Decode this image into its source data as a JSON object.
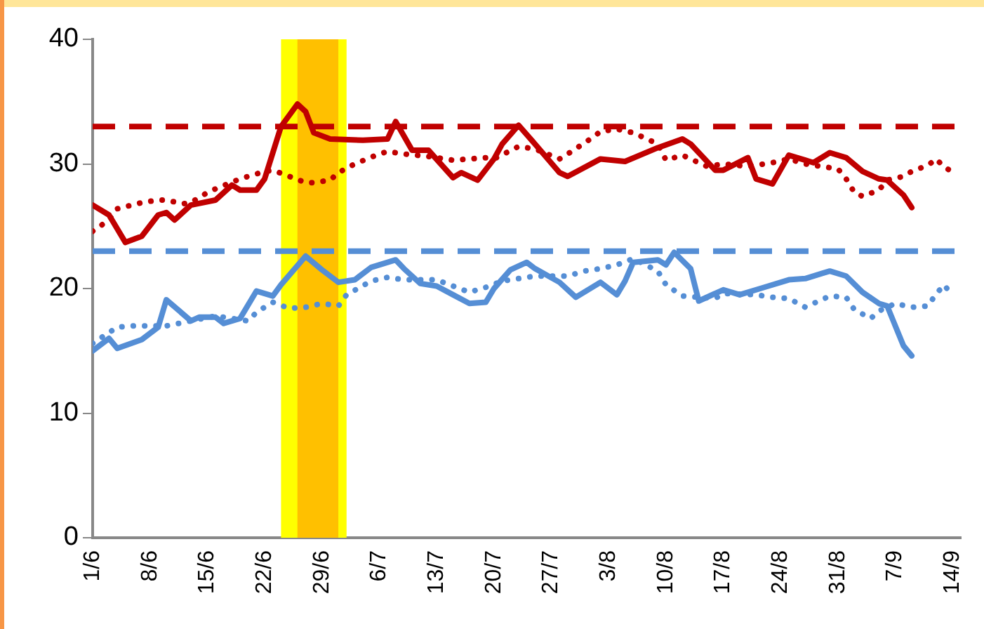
{
  "chart_data": {
    "type": "line",
    "xlim": [
      "--06-01",
      "--09-15"
    ],
    "xticks": [
      {
        "value": "--06-01",
        "label": "1/6"
      },
      {
        "value": "--06-08",
        "label": "8/6"
      },
      {
        "value": "--06-15",
        "label": "15/6"
      },
      {
        "value": "--06-22",
        "label": "22/6"
      },
      {
        "value": "--06-29",
        "label": "29/6"
      },
      {
        "value": "--07-06",
        "label": "6/7"
      },
      {
        "value": "--07-13",
        "label": "13/7"
      },
      {
        "value": "--07-20",
        "label": "20/7"
      },
      {
        "value": "--07-27",
        "label": "27/7"
      },
      {
        "value": "--08-03",
        "label": "3/8"
      },
      {
        "value": "--08-10",
        "label": "10/8"
      },
      {
        "value": "--08-17",
        "label": "17/8"
      },
      {
        "value": "--08-24",
        "label": "24/8"
      },
      {
        "value": "--08-31",
        "label": "31/8"
      },
      {
        "value": "--09-07",
        "label": "7/9"
      },
      {
        "value": "--09-14",
        "label": "14/9"
      }
    ],
    "ylim": [
      0,
      40
    ],
    "yticks": [
      0,
      10,
      20,
      30,
      40
    ],
    "grid": false,
    "legend": false,
    "marker": "none",
    "bands": [
      {
        "axis": "x",
        "from": "--06-24",
        "to": "--07-02",
        "color": "#ffff00"
      },
      {
        "axis": "x",
        "from": "--06-26",
        "to": "--07-01",
        "color": "#ffc000"
      }
    ],
    "ref_lines": [
      {
        "axis": "y",
        "value": 33,
        "color": "#c00000",
        "line_style": "dashed"
      },
      {
        "axis": "y",
        "value": 23,
        "color": "#558ed5",
        "line_style": "dashed"
      }
    ],
    "series": [
      {
        "color": "#c00000",
        "line_style": "solid",
        "x": [
          "--06-01",
          "--06-03",
          "--06-05",
          "--06-07",
          "--06-09",
          "--06-10",
          "--06-11",
          "--06-13",
          "--06-16",
          "--06-18",
          "--06-19",
          "--06-21",
          "--06-22",
          "--06-24",
          "--06-26",
          "--06-27",
          "--06-28",
          "--06-30",
          "--07-04",
          "--07-07",
          "--07-08",
          "--07-10",
          "--07-12",
          "--07-15",
          "--07-16",
          "--07-18",
          "--07-20",
          "--07-21",
          "--07-23",
          "--07-25",
          "--07-28",
          "--07-29",
          "--08-02",
          "--08-05",
          "--08-09",
          "--08-12",
          "--08-13",
          "--08-16",
          "--08-17",
          "--08-20",
          "--08-21",
          "--08-23",
          "--08-25",
          "--08-27",
          "--08-28",
          "--08-30",
          "--09-01",
          "--09-03",
          "--09-05",
          "--09-06",
          "--09-08",
          "--09-09"
        ],
        "values": [
          26.7,
          25.9,
          23.7,
          24.2,
          25.9,
          26.1,
          25.5,
          26.7,
          27.1,
          28.3,
          27.9,
          27.9,
          28.8,
          33.0,
          34.8,
          34.2,
          32.5,
          32.0,
          31.9,
          32.0,
          33.4,
          31.1,
          31.1,
          28.9,
          29.3,
          28.7,
          30.4,
          31.6,
          33.1,
          31.6,
          29.3,
          29.0,
          30.4,
          30.2,
          31.3,
          32.0,
          31.6,
          29.5,
          29.5,
          30.5,
          28.8,
          28.4,
          30.7,
          30.3,
          30.1,
          30.9,
          30.5,
          29.4,
          28.8,
          28.7,
          27.5,
          26.5
        ]
      },
      {
        "color": "#c00000",
        "line_style": "dotted",
        "x": [
          "--06-01",
          "--06-03",
          "--06-04",
          "--06-07",
          "--06-09",
          "--06-10",
          "--06-12",
          "--06-13",
          "--06-15",
          "--06-16",
          "--06-19",
          "--06-22",
          "--06-23",
          "--06-25",
          "--06-27",
          "--06-28",
          "--06-30",
          "--07-01",
          "--07-03",
          "--07-06",
          "--07-07",
          "--07-09",
          "--07-12",
          "--07-15",
          "--07-19",
          "--07-20",
          "--07-23",
          "--07-25",
          "--07-28",
          "--07-29",
          "--08-01",
          "--08-02",
          "--08-04",
          "--08-06",
          "--08-07",
          "--08-09",
          "--08-10",
          "--08-12",
          "--08-15",
          "--08-17",
          "--08-20",
          "--08-22",
          "--08-23",
          "--08-25",
          "--08-27",
          "--08-29",
          "--08-31",
          "--09-01",
          "--09-02",
          "--09-03",
          "--09-05",
          "--09-06",
          "--09-08",
          "--09-09",
          "--09-11",
          "--09-12",
          "--09-13",
          "--09-14"
        ],
        "values": [
          24.6,
          25.5,
          26.4,
          26.9,
          27.1,
          27.1,
          26.8,
          26.9,
          27.7,
          28.0,
          28.8,
          29.4,
          29.5,
          29.0,
          28.5,
          28.5,
          28.7,
          29.3,
          30.0,
          30.8,
          31.0,
          30.8,
          30.6,
          30.3,
          30.5,
          30.4,
          31.4,
          31.2,
          30.4,
          30.8,
          32.1,
          32.6,
          32.8,
          32.5,
          32.2,
          31.6,
          30.3,
          30.7,
          29.8,
          30.0,
          29.8,
          30.0,
          30.1,
          30.4,
          30.0,
          29.8,
          29.6,
          28.8,
          27.7,
          27.4,
          27.9,
          28.7,
          29.0,
          29.4,
          29.9,
          30.4,
          29.7,
          29.4
        ]
      },
      {
        "color": "#558ed5",
        "line_style": "solid",
        "x": [
          "--06-01",
          "--06-03",
          "--06-04",
          "--06-07",
          "--06-09",
          "--06-10",
          "--06-13",
          "--06-14",
          "--06-16",
          "--06-17",
          "--06-19",
          "--06-21",
          "--06-23",
          "--06-24",
          "--06-27",
          "--06-29",
          "--07-01",
          "--07-03",
          "--07-05",
          "--07-08",
          "--07-09",
          "--07-11",
          "--07-13",
          "--07-15",
          "--07-17",
          "--07-19",
          "--07-20",
          "--07-22",
          "--07-24",
          "--07-25",
          "--07-28",
          "--07-30",
          "--08-02",
          "--08-04",
          "--08-05",
          "--08-06",
          "--08-09",
          "--08-10",
          "--08-11",
          "--08-13",
          "--08-14",
          "--08-17",
          "--08-19",
          "--08-22",
          "--08-25",
          "--08-27",
          "--08-29",
          "--08-30",
          "--09-01",
          "--09-03",
          "--09-05",
          "--09-06",
          "--09-08",
          "--09-09"
        ],
        "values": [
          15.0,
          16.0,
          15.2,
          15.9,
          16.9,
          19.1,
          17.4,
          17.7,
          17.7,
          17.2,
          17.6,
          19.8,
          19.4,
          20.3,
          22.6,
          21.5,
          20.5,
          20.7,
          21.7,
          22.3,
          21.6,
          20.4,
          20.2,
          19.5,
          18.8,
          18.9,
          20.0,
          21.5,
          22.1,
          21.6,
          20.5,
          19.3,
          20.5,
          19.5,
          20.6,
          22.1,
          22.3,
          21.9,
          22.9,
          21.6,
          19.0,
          19.9,
          19.5,
          20.1,
          20.7,
          20.8,
          21.2,
          21.4,
          21.0,
          19.7,
          18.8,
          18.6,
          15.4,
          14.6
        ]
      },
      {
        "color": "#558ed5",
        "line_style": "dotted",
        "x": [
          "--06-01",
          "--06-04",
          "--06-06",
          "--06-10",
          "--06-16",
          "--06-20",
          "--06-21",
          "--06-23",
          "--06-25",
          "--06-27",
          "--06-29",
          "--07-01",
          "--07-02",
          "--07-05",
          "--07-07",
          "--07-09",
          "--07-13",
          "--07-17",
          "--07-19",
          "--07-21",
          "--07-25",
          "--07-29",
          "--07-31",
          "--08-02",
          "--08-04",
          "--08-06",
          "--08-09",
          "--08-10",
          "--08-12",
          "--08-14",
          "--08-16",
          "--08-17",
          "--08-21",
          "--08-23",
          "--08-25",
          "--08-27",
          "--08-28",
          "--08-30",
          "--09-01",
          "--09-02",
          "--09-04",
          "--09-05",
          "--09-07",
          "--09-09",
          "--09-11",
          "--09-12",
          "--09-13",
          "--09-14"
        ],
        "values": [
          15.6,
          16.9,
          17.0,
          17.0,
          17.8,
          17.4,
          18.1,
          18.9,
          18.4,
          18.5,
          18.8,
          18.6,
          19.5,
          20.6,
          20.9,
          20.7,
          20.7,
          19.7,
          20.1,
          20.6,
          21.0,
          21.0,
          21.4,
          21.6,
          21.9,
          22.4,
          21.4,
          20.3,
          19.4,
          19.3,
          19.2,
          19.6,
          19.5,
          19.3,
          19.2,
          18.5,
          18.8,
          19.4,
          19.3,
          18.3,
          17.6,
          18.2,
          18.8,
          18.5,
          18.6,
          19.6,
          20.3,
          19.3
        ]
      }
    ]
  }
}
